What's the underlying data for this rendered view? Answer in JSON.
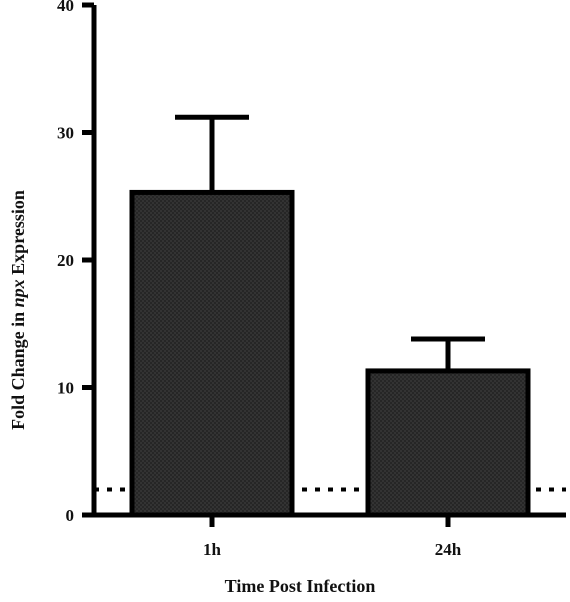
{
  "chart_data": {
    "type": "bar",
    "categories": [
      "1h",
      "24h"
    ],
    "values": [
      25.3,
      11.3
    ],
    "errors": [
      5.9,
      2.5
    ],
    "xlabel": "Time Post Infection",
    "ylabel": {
      "prefix": "Fold  Change in ",
      "italic": "npx",
      "suffix": " Expression"
    },
    "ylim": [
      0,
      40
    ],
    "yticks": [
      0,
      10,
      20,
      30,
      40
    ],
    "reference_line": 2,
    "grid": false,
    "legend": "none",
    "colors": {
      "bar_fill": "#2f2f2f",
      "bar_stroke": "#000000",
      "axis": "#000000"
    }
  }
}
